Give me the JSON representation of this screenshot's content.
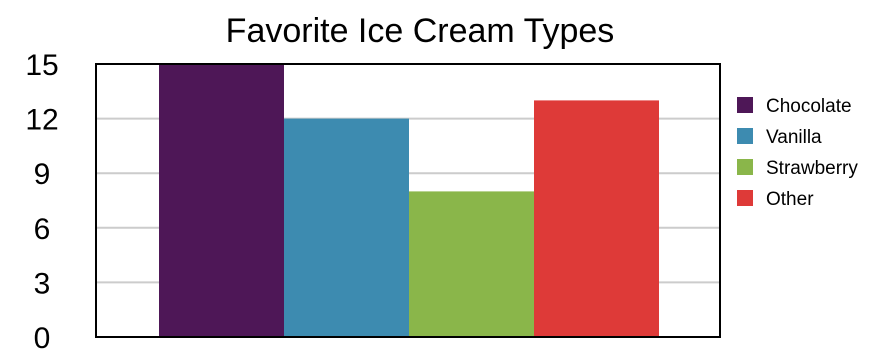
{
  "chart_data": {
    "type": "bar",
    "title": "Favorite Ice Cream Types",
    "categories": [
      "Chocolate",
      "Vanilla",
      "Strawberry",
      "Other"
    ],
    "values": [
      15,
      12,
      8,
      13
    ],
    "colors": [
      "#4e1757",
      "#3d8bb0",
      "#8ab64a",
      "#de3a38"
    ],
    "ylim": [
      0,
      15
    ],
    "yticks": [
      0,
      3,
      6,
      9,
      12,
      15
    ],
    "grid": true,
    "legend_position": "right",
    "xlabel": "",
    "ylabel": ""
  }
}
